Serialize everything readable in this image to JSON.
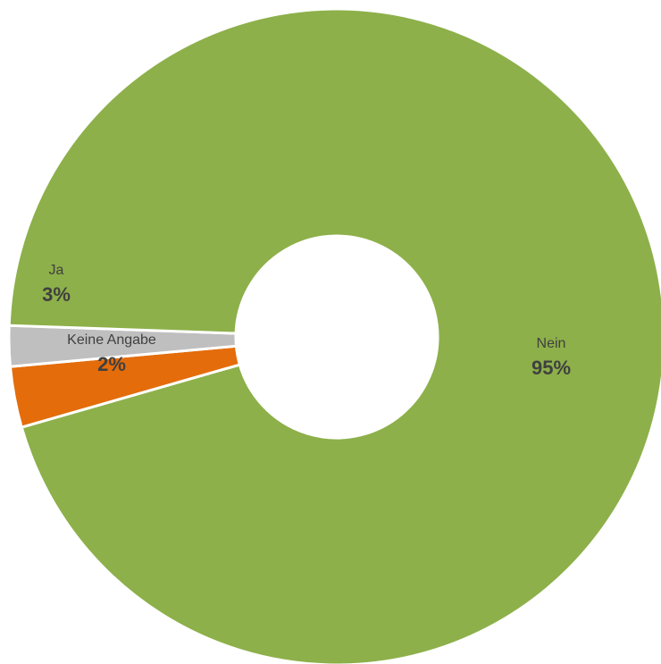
{
  "chart_data": {
    "type": "pie",
    "title": "",
    "donut": true,
    "categories": [
      "Ja",
      "Keine Angabe",
      "Nein"
    ],
    "values": [
      3,
      2,
      95
    ],
    "value_labels": [
      "3%",
      "2%",
      "95%"
    ],
    "colors": [
      "#E46C0A",
      "#BFBFBF",
      "#8DB04A"
    ],
    "legend": "none"
  }
}
